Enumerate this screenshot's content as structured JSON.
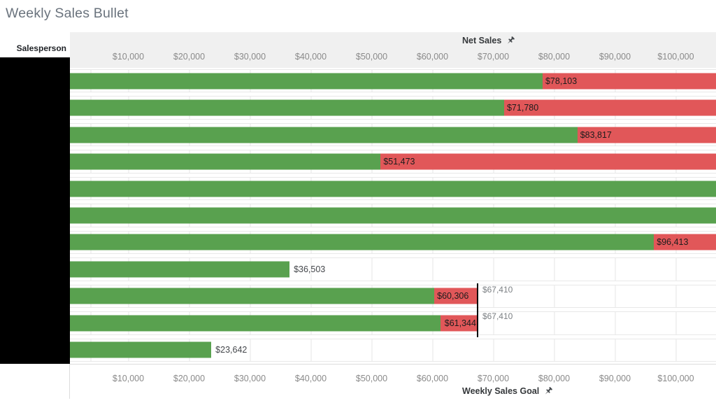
{
  "title": "Weekly Sales Bullet",
  "left_column": {
    "header": "Salesperson",
    "values_redacted": true
  },
  "chart_data": {
    "type": "bar",
    "subtype": "bullet",
    "orientation": "horizontal",
    "title": "Weekly Sales Bullet",
    "x_axis_top": {
      "title": "Net Sales",
      "pin_icon": "pushpin-icon",
      "tick_labels": [
        "$10,000",
        "$20,000",
        "$30,000",
        "$40,000",
        "$50,000",
        "$60,000",
        "$70,000",
        "$80,000",
        "$90,000",
        "$100,000"
      ],
      "tick_values": [
        10000,
        20000,
        30000,
        40000,
        50000,
        60000,
        70000,
        80000,
        90000,
        100000
      ],
      "range_shown": [
        0,
        106600
      ],
      "grid": true
    },
    "x_axis_bottom": {
      "title": "Weekly Sales Goal",
      "pin_icon": "pushpin-icon",
      "tick_labels": [
        "$10,000",
        "$20,000",
        "$30,000",
        "$40,000",
        "$50,000",
        "$60,000",
        "$70,000",
        "$80,000",
        "$90,000",
        "$100,000"
      ],
      "tick_values": [
        10000,
        20000,
        30000,
        40000,
        50000,
        60000,
        70000,
        80000,
        90000,
        100000
      ]
    },
    "colors": {
      "actual": "#59a14f",
      "shortfall": "#e15759",
      "reference_line": "#000000"
    },
    "rows": [
      {
        "value": 78103,
        "value_label": "$78,103",
        "shortfall": "to-chart-edge",
        "goal": null,
        "goal_label": null,
        "bar_full_width": false
      },
      {
        "value": 71780,
        "value_label": "$71,780",
        "shortfall": "to-chart-edge",
        "goal": null,
        "goal_label": null,
        "bar_full_width": false
      },
      {
        "value": 83817,
        "value_label": "$83,817",
        "shortfall": "to-chart-edge",
        "goal": null,
        "goal_label": null,
        "bar_full_width": false
      },
      {
        "value": 51473,
        "value_label": "$51,473",
        "shortfall": "to-chart-edge",
        "goal": null,
        "goal_label": null,
        "bar_full_width": false
      },
      {
        "value": null,
        "value_label": null,
        "shortfall": "none",
        "goal": null,
        "goal_label": null,
        "bar_full_width": true
      },
      {
        "value": null,
        "value_label": null,
        "shortfall": "none",
        "goal": null,
        "goal_label": null,
        "bar_full_width": true
      },
      {
        "value": 96413,
        "value_label": "$96,413",
        "shortfall": "to-chart-edge",
        "goal": null,
        "goal_label": null,
        "bar_full_width": false
      },
      {
        "value": 36503,
        "value_label": "$36,503",
        "shortfall": "none",
        "goal": null,
        "goal_label": null,
        "bar_full_width": false
      },
      {
        "value": 60306,
        "value_label": "$60,306",
        "shortfall": "to-goal",
        "goal": 67410,
        "goal_label": "$67,410",
        "bar_full_width": false
      },
      {
        "value": 61344,
        "value_label": "$61,344",
        "shortfall": "to-goal",
        "goal": 67410,
        "goal_label": "$67,410",
        "bar_full_width": false
      },
      {
        "value": 23642,
        "value_label": "$23,642",
        "shortfall": "none",
        "goal": null,
        "goal_label": null,
        "bar_full_width": false
      }
    ]
  }
}
